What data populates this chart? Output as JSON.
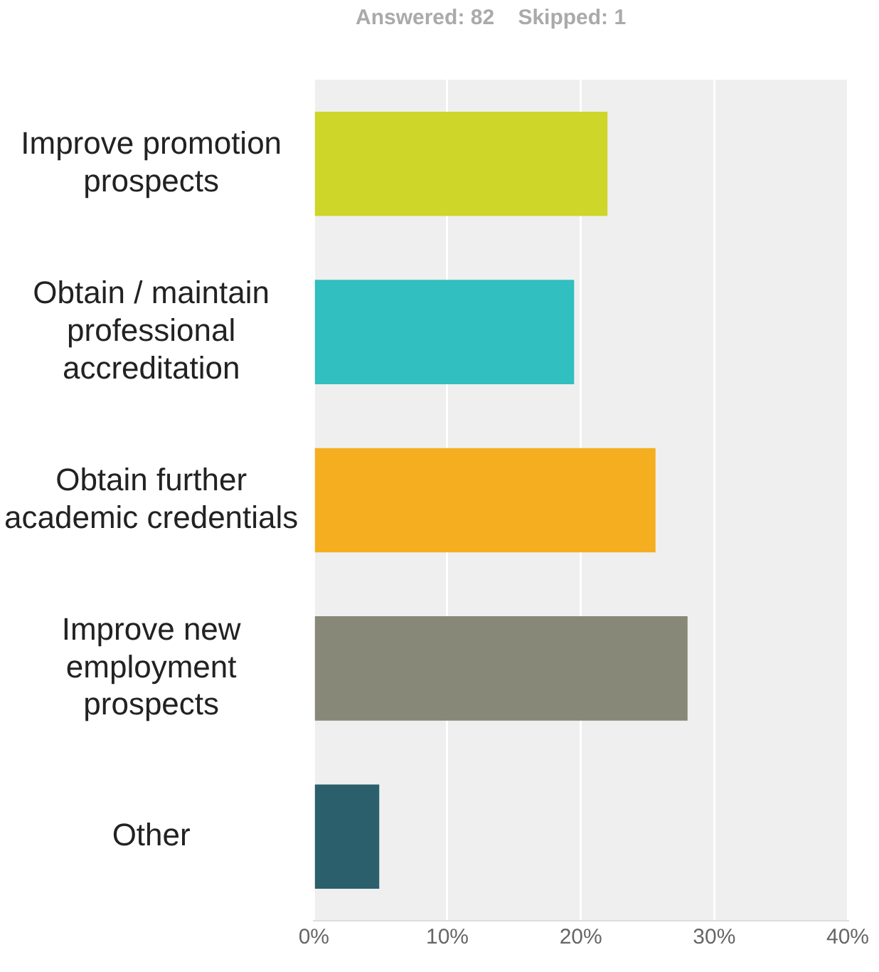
{
  "chart_data": {
    "type": "bar",
    "orientation": "horizontal",
    "annotations": [
      "Answered: 82    Skipped: 1"
    ],
    "categories": [
      "Improve promotion prospects",
      "Obtain / maintain professional accreditation",
      "Obtain further academic credentials",
      "Improve new employment prospects",
      "Other"
    ],
    "values": [
      22,
      19.5,
      25.6,
      28,
      4.9
    ],
    "colors": [
      "#cdd629",
      "#31bfc0",
      "#f5ae1f",
      "#878877",
      "#2b5f6c"
    ],
    "xlim": [
      0,
      40
    ],
    "xticks": [
      {
        "value": 0,
        "label": "0%"
      },
      {
        "value": 10,
        "label": "10%"
      },
      {
        "value": 20,
        "label": "20%"
      },
      {
        "value": 30,
        "label": "30%"
      },
      {
        "value": 40,
        "label": "40%"
      }
    ],
    "grid": "x",
    "legend": false
  }
}
